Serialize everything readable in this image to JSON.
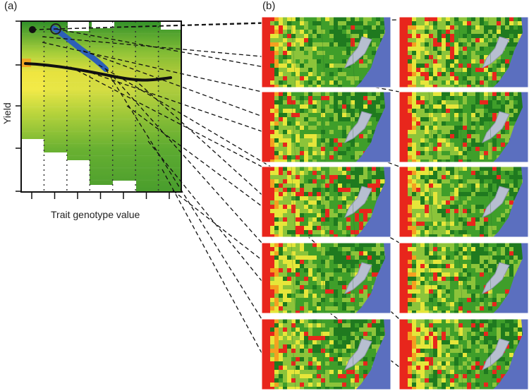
{
  "panel_a": {
    "label": "(a)",
    "ylabel": "Yield",
    "xlabel": "Trait genotype value"
  },
  "panel_b": {
    "label": "(b)"
  },
  "colors": {
    "green_dark": "#1f7a1f",
    "green": "#3f9e2a",
    "green_light": "#8cc43a",
    "yellow": "#e6e63a",
    "orange": "#f4a020",
    "red": "#e8261c",
    "ocean": "#5b6fbf",
    "mountain": "#b7bfd0",
    "trajectory_blue": "#2d5fb8",
    "trend_black": "#111111"
  }
}
